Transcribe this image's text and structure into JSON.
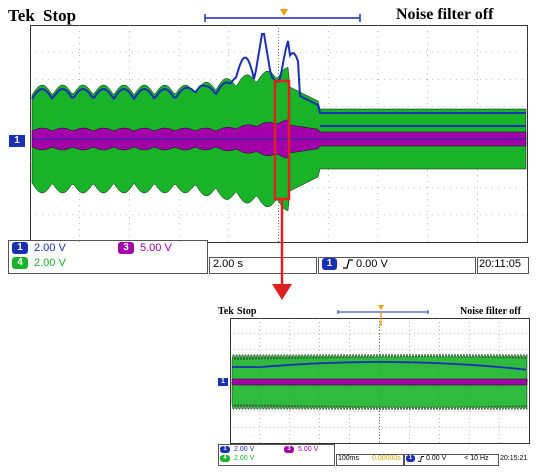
{
  "colors": {
    "ch1": "#1a2fb4",
    "ch3": "#a200a8",
    "ch4": "#19b329",
    "annotation": "#e02020",
    "grid": "#8a8a8a"
  },
  "main": {
    "header": {
      "brand": "Tek",
      "state": "Stop",
      "filter": "Noise filter off"
    },
    "ch1_marker": "1",
    "status": {
      "ch1_badge": "1",
      "ch1_scale": "2.00 V",
      "ch3_badge": "3",
      "ch3_scale": "5.00 V",
      "ch4_badge": "4",
      "ch4_scale": "2.00 V",
      "timebase": "2.00 s",
      "trig_badge": "1",
      "trig_icon": "rising-edge-icon",
      "trig_level": "0.00 V",
      "clock": "20:11:05"
    }
  },
  "zoom": {
    "header": {
      "brand": "Tek",
      "state": "Stop",
      "filter": "Noise filter off"
    },
    "ch1_marker": "1",
    "status": {
      "ch1_badge": "1",
      "ch1_scale": "2.00 V",
      "ch3_badge": "3",
      "ch3_scale": "5.00 V",
      "ch4_badge": "4",
      "ch4_scale": "2.00 V",
      "timebase": "100ms",
      "trig_pos": "0.00000s",
      "trig_badge": "1",
      "trig_icon": "rising-edge-icon",
      "trig_level": "0.00 V",
      "sample_rate": "< 10 Hz",
      "clock": "20:15:21"
    }
  }
}
